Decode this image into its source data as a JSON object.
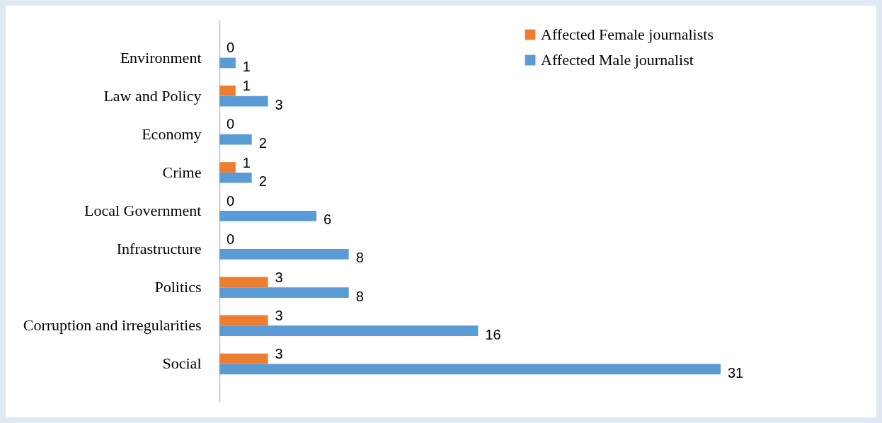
{
  "chart_data": {
    "type": "bar",
    "orientation": "horizontal",
    "categories": [
      "Environment",
      "Law and Policy",
      "Economy",
      "Crime",
      "Local Government",
      "Infrastructure",
      "Politics",
      "Corruption and irregularities",
      "Social"
    ],
    "series": [
      {
        "name": "Affected Female journalists",
        "color": "#ed7d31",
        "values": [
          0,
          1,
          0,
          1,
          0,
          0,
          3,
          3,
          3
        ]
      },
      {
        "name": "Affected Male journalist",
        "color": "#5b9bd5",
        "values": [
          1,
          3,
          2,
          2,
          6,
          8,
          8,
          16,
          31
        ]
      }
    ],
    "data_labels": true,
    "legend": "top right"
  }
}
